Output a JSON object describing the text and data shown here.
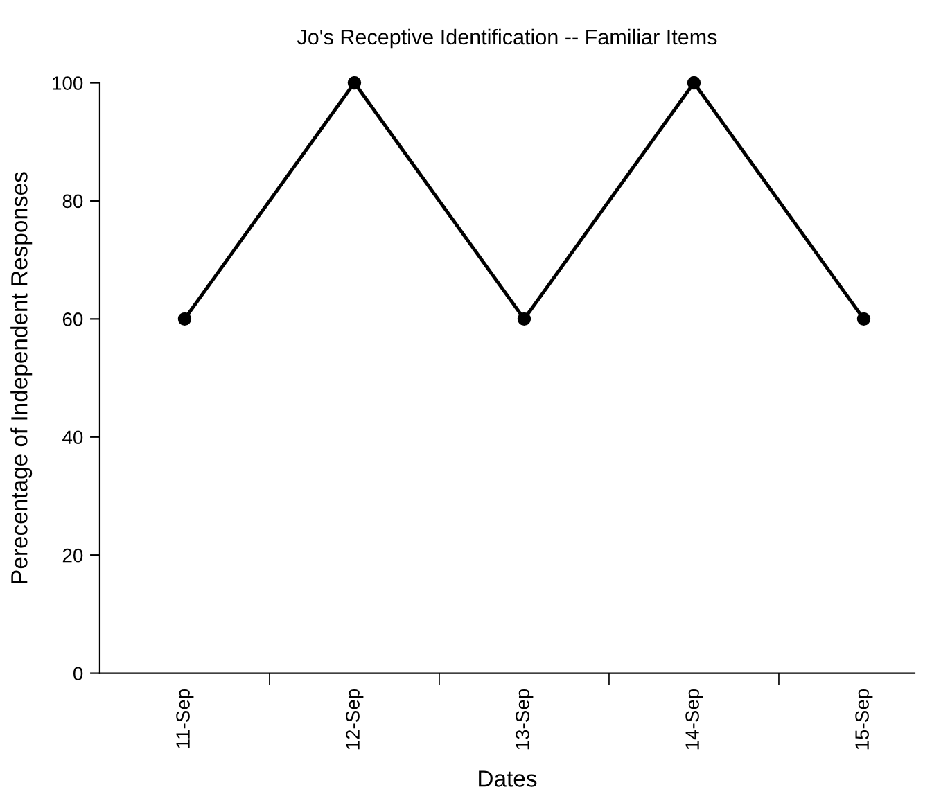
{
  "chart_data": {
    "type": "line",
    "title": "Jo's Receptive Identification -- Familiar Items",
    "xlabel": "Dates",
    "ylabel": "Perecentage of Independent Responses",
    "categories": [
      "11-Sep",
      "12-Sep",
      "13-Sep",
      "14-Sep",
      "15-Sep"
    ],
    "series": [
      {
        "color": "#000000",
        "values": [
          60,
          100,
          60,
          100,
          60
        ]
      }
    ],
    "ylim": [
      0,
      100
    ],
    "yticks": [
      0,
      20,
      40,
      60,
      80,
      100
    ],
    "marker": "circle",
    "line_style": "solid",
    "grid": false,
    "legend": false
  }
}
